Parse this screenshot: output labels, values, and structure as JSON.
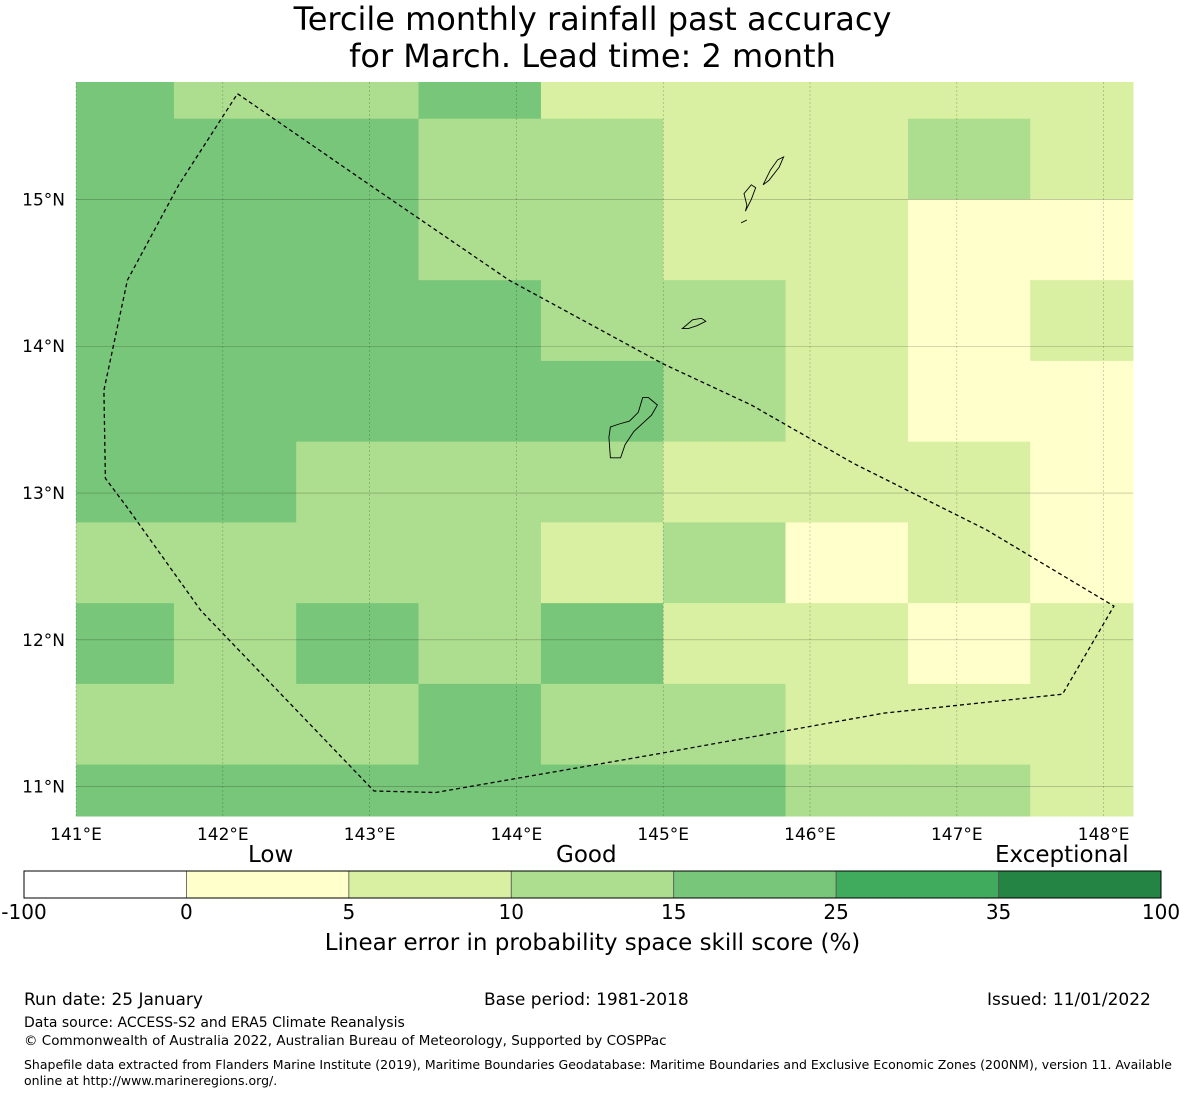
{
  "title": {
    "line1": "Tercile monthly rainfall past accuracy",
    "line2": "for March. Lead time: 2 month"
  },
  "map": {
    "lon_range": [
      141.0,
      148.2
    ],
    "lat_range": [
      10.8,
      15.8
    ],
    "lon_labels": [
      "141°E",
      "142°E",
      "143°E",
      "144°E",
      "145°E",
      "146°E",
      "147°E",
      "148°E"
    ],
    "lon_values": [
      141,
      142,
      143,
      144,
      145,
      146,
      147,
      148
    ],
    "lat_labels": [
      "11°N",
      "12°N",
      "13°N",
      "14°N",
      "15°N"
    ],
    "lat_values": [
      11,
      12,
      13,
      14,
      15
    ],
    "colors": {
      "c0": "#ffffcc",
      "c5": "#d9f0a3",
      "c10": "#addd8e",
      "c15": "#78c679",
      "c25": "#41ab5d",
      "c35": "#238443"
    },
    "grid_cols_lon": [
      141.0,
      141.667,
      142.5,
      143.333,
      144.167,
      145.0,
      145.833,
      146.667,
      147.5,
      148.2
    ],
    "grid_rows_lat": [
      15.8,
      15.55,
      15.0,
      14.45,
      13.9,
      13.35,
      12.8,
      12.25,
      11.7,
      11.15,
      10.8
    ],
    "cells": [
      [
        "c15",
        "c10",
        "c10",
        "c15",
        "c5",
        "c5",
        "c5",
        "c5",
        "c5"
      ],
      [
        "c15",
        "c15",
        "c15",
        "c10",
        "c10",
        "c5",
        "c5",
        "c10",
        "c5"
      ],
      [
        "c15",
        "c15",
        "c15",
        "c10",
        "c10",
        "c5",
        "c5",
        "c0",
        "c0"
      ],
      [
        "c15",
        "c15",
        "c15",
        "c15",
        "c10",
        "c10",
        "c5",
        "c0",
        "c5"
      ],
      [
        "c15",
        "c15",
        "c15",
        "c15",
        "c15",
        "c10",
        "c5",
        "c0",
        "c0"
      ],
      [
        "c15",
        "c15",
        "c10",
        "c10",
        "c10",
        "c5",
        "c5",
        "c5",
        "c0"
      ],
      [
        "c10",
        "c10",
        "c10",
        "c10",
        "c5",
        "c10",
        "c0",
        "c5",
        "c0"
      ],
      [
        "c15",
        "c10",
        "c15",
        "c10",
        "c15",
        "c5",
        "c5",
        "c0",
        "c5"
      ],
      [
        "c10",
        "c10",
        "c10",
        "c15",
        "c10",
        "c10",
        "c5",
        "c5",
        "c5"
      ],
      [
        "c15",
        "c15",
        "c15",
        "c15",
        "c15",
        "c15",
        "c10",
        "c10",
        "c5"
      ]
    ],
    "eez_boundary": [
      [
        142.1,
        15.72
      ],
      [
        143.0,
        15.1
      ],
      [
        143.95,
        14.45
      ],
      [
        145.0,
        13.88
      ],
      [
        145.6,
        13.6
      ],
      [
        146.3,
        13.2
      ],
      [
        147.2,
        12.75
      ],
      [
        148.07,
        12.23
      ],
      [
        147.72,
        11.63
      ],
      [
        146.5,
        11.5
      ],
      [
        145.0,
        11.23
      ],
      [
        143.45,
        10.96
      ],
      [
        143.03,
        10.97
      ],
      [
        141.85,
        12.2
      ],
      [
        141.35,
        12.9
      ],
      [
        141.2,
        13.1
      ],
      [
        141.19,
        13.7
      ],
      [
        141.35,
        14.45
      ],
      [
        141.7,
        15.1
      ],
      [
        142.1,
        15.72
      ]
    ],
    "islands": [
      [
        [
          144.64,
          13.24
        ],
        [
          144.71,
          13.24
        ],
        [
          144.74,
          13.33
        ],
        [
          144.8,
          13.42
        ],
        [
          144.92,
          13.53
        ],
        [
          144.96,
          13.6
        ],
        [
          144.9,
          13.65
        ],
        [
          144.86,
          13.65
        ],
        [
          144.83,
          13.55
        ],
        [
          144.77,
          13.49
        ],
        [
          144.7,
          13.47
        ],
        [
          144.64,
          13.45
        ],
        [
          144.63,
          13.38
        ]
      ],
      [
        [
          145.13,
          14.12
        ],
        [
          145.2,
          14.18
        ],
        [
          145.26,
          14.19
        ],
        [
          145.29,
          14.17
        ],
        [
          145.23,
          14.14
        ],
        [
          145.17,
          14.12
        ]
      ],
      [
        [
          145.56,
          14.92
        ],
        [
          145.6,
          15.0
        ],
        [
          145.63,
          15.08
        ],
        [
          145.6,
          15.1
        ],
        [
          145.55,
          15.04
        ],
        [
          145.57,
          14.96
        ]
      ],
      [
        [
          145.68,
          15.1
        ],
        [
          145.73,
          15.2
        ],
        [
          145.78,
          15.27
        ],
        [
          145.82,
          15.29
        ],
        [
          145.79,
          15.22
        ],
        [
          145.72,
          15.13
        ]
      ],
      [
        [
          145.53,
          14.84
        ],
        [
          145.57,
          14.86
        ],
        [
          145.55,
          14.85
        ]
      ]
    ]
  },
  "colorbar": {
    "boundaries": [
      "-100",
      "0",
      "5",
      "10",
      "15",
      "25",
      "35",
      "100"
    ],
    "segment_colors": [
      "#ffffff",
      "#ffffcc",
      "#d9f0a3",
      "#addd8e",
      "#78c679",
      "#41ab5d",
      "#238443"
    ],
    "headings": {
      "low": "Low",
      "good": "Good",
      "exceptional": "Exceptional"
    },
    "label": "Linear error in probability space skill score (%)"
  },
  "footer": {
    "run_date": "Run date: 25 January",
    "base_period": "Base period: 1981-2018",
    "issued": "Issued: 11/01/2022",
    "data_source": "Data source: ACCESS-S2 and ERA5 Climate Reanalysis",
    "copyright": "© Commonwealth of Australia 2022, Australian Bureau of Meteorology, Supported by COSPPac",
    "shapefile": "Shapefile data extracted from Flanders Marine Institute (2019), Maritime Boundaries Geodatabase: Maritime Boundaries and Exclusive Economic Zones (200NM), version 11. Available online at http://www.marineregions.org/."
  }
}
